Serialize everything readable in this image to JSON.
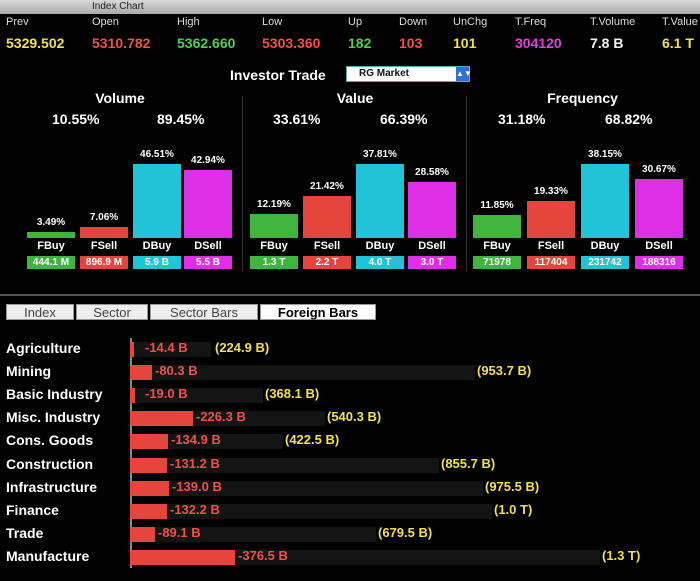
{
  "window": {
    "title": "Index Chart"
  },
  "summary": [
    {
      "label": "Prev",
      "value": "5329.502",
      "color": "yellow"
    },
    {
      "label": "Open",
      "value": "5310.782",
      "color": "red"
    },
    {
      "label": "High",
      "value": "5362.660",
      "color": "green"
    },
    {
      "label": "Low",
      "value": "5303.360",
      "color": "red"
    },
    {
      "label": "Up",
      "value": "182",
      "color": "green"
    },
    {
      "label": "Down",
      "value": "103",
      "color": "red"
    },
    {
      "label": "UnChg",
      "value": "101",
      "color": "yellow"
    },
    {
      "label": "T.Freq",
      "value": "304120",
      "color": "magenta"
    },
    {
      "label": "T.Volume",
      "value": "7.8 B",
      "color": "white"
    },
    {
      "label": "T.Value",
      "value": "6.1 T",
      "color": "yellow"
    }
  ],
  "investor_trade": {
    "label": "Investor Trade",
    "selected": "RG Market"
  },
  "panels": [
    {
      "title": "Volume",
      "left_pct": "10.55%",
      "right_pct": "89.45%",
      "bars": [
        {
          "label": "FBuy",
          "pct": "3.49%",
          "level": 3.49,
          "value": "444.1 M",
          "color": "#3fb43f"
        },
        {
          "label": "FSell",
          "pct": "7.06%",
          "level": 7.06,
          "value": "896.9 M",
          "color": "#e5453c"
        },
        {
          "label": "DBuy",
          "pct": "46.51%",
          "level": 46.51,
          "value": "5.9 B",
          "color": "#21c4d6"
        },
        {
          "label": "DSell",
          "pct": "42.94%",
          "level": 42.94,
          "value": "5.5 B",
          "color": "#df2fe6"
        }
      ]
    },
    {
      "title": "Value",
      "left_pct": "33.61%",
      "right_pct": "66.39%",
      "bars": [
        {
          "label": "FBuy",
          "pct": "12.19%",
          "level": 12.19,
          "value": "1.3 T",
          "color": "#3fb43f"
        },
        {
          "label": "FSell",
          "pct": "21.42%",
          "level": 21.42,
          "value": "2.2 T",
          "color": "#e5453c"
        },
        {
          "label": "DBuy",
          "pct": "37.81%",
          "level": 37.81,
          "value": "4.0 T",
          "color": "#21c4d6"
        },
        {
          "label": "DSell",
          "pct": "28.58%",
          "level": 28.58,
          "value": "3.0 T",
          "color": "#df2fe6"
        }
      ]
    },
    {
      "title": "Frequency",
      "left_pct": "31.18%",
      "right_pct": "68.82%",
      "bars": [
        {
          "label": "FBuy",
          "pct": "11.85%",
          "level": 11.85,
          "value": "71978",
          "color": "#3fb43f"
        },
        {
          "label": "FSell",
          "pct": "19.33%",
          "level": 19.33,
          "value": "117404",
          "color": "#e5453c"
        },
        {
          "label": "DBuy",
          "pct": "38.15%",
          "level": 38.15,
          "value": "231742",
          "color": "#21c4d6"
        },
        {
          "label": "DSell",
          "pct": "30.67%",
          "level": 30.67,
          "value": "188316",
          "color": "#df2fe6"
        }
      ]
    }
  ],
  "tabs": [
    {
      "label": "Index"
    },
    {
      "label": "Sector"
    },
    {
      "label": "Sector Bars"
    },
    {
      "label": "Foreign Bars",
      "active": true
    }
  ],
  "sectors": [
    {
      "name": "Agriculture",
      "net": "-14.4 B",
      "net_value": 14.4,
      "total": "(224.9 B)",
      "total_value": 224.9
    },
    {
      "name": "Mining",
      "net": "-80.3 B",
      "net_value": 80.3,
      "total": "(953.7 B)",
      "total_value": 953.7
    },
    {
      "name": "Basic Industry",
      "net": "-19.0 B",
      "net_value": 19.0,
      "total": "(368.1 B)",
      "total_value": 368.1
    },
    {
      "name": "Misc. Industry",
      "net": "-226.3 B",
      "net_value": 226.3,
      "total": "(540.3 B)",
      "total_value": 540.3
    },
    {
      "name": "Cons. Goods",
      "net": "-134.9 B",
      "net_value": 134.9,
      "total": "(422.5 B)",
      "total_value": 422.5
    },
    {
      "name": "Construction",
      "net": "-131.2 B",
      "net_value": 131.2,
      "total": "(855.7 B)",
      "total_value": 855.7
    },
    {
      "name": "Infrastructure",
      "net": "-139.0 B",
      "net_value": 139.0,
      "total": "(975.5 B)",
      "total_value": 975.5
    },
    {
      "name": "Finance",
      "net": "-132.2 B",
      "net_value": 132.2,
      "total": "(1.0 T)",
      "total_value": 1000
    },
    {
      "name": "Trade",
      "net": "-89.1 B",
      "net_value": 89.1,
      "total": "(679.5 B)",
      "total_value": 679.5
    },
    {
      "name": "Manufacture",
      "net": "-376.5 B",
      "net_value": 376.5,
      "total": "(1.3 T)",
      "total_value": 1300
    }
  ]
}
